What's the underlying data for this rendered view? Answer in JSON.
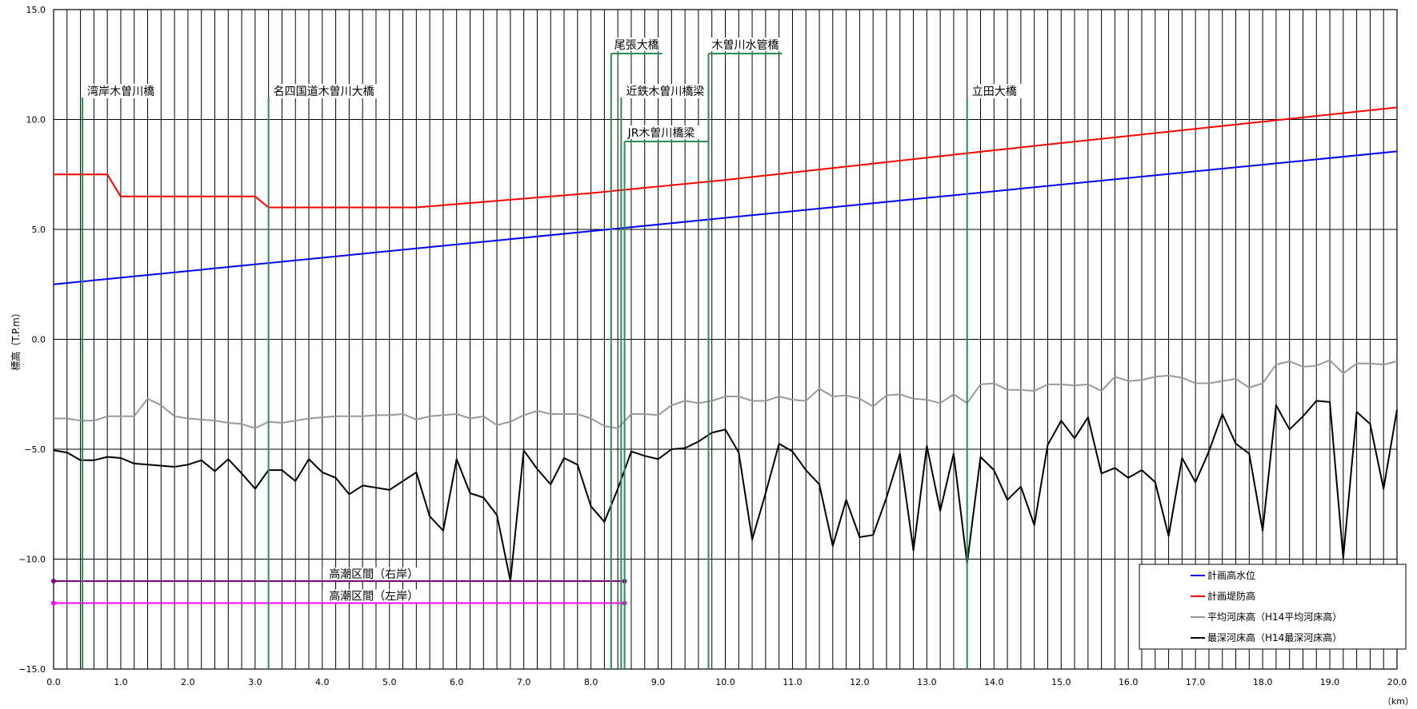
{
  "chart_data": {
    "type": "line",
    "ylabel": "標高（T.P.m）",
    "xunit": "（km）",
    "xlim": [
      0,
      20
    ],
    "ylim": [
      -15,
      15
    ],
    "xticks": [
      0,
      1,
      2,
      3,
      4,
      5,
      6,
      7,
      8,
      9,
      10,
      11,
      12,
      13,
      14,
      15,
      16,
      17,
      18,
      19,
      20
    ],
    "yticks": [
      -15,
      -10,
      -5,
      0,
      5,
      10,
      15
    ],
    "x_tick_labels": [
      "0.0",
      "1.0",
      "2.0",
      "3.0",
      "4.0",
      "5.0",
      "6.0",
      "7.0",
      "8.0",
      "9.0",
      "10.0",
      "11.0",
      "12.0",
      "13.0",
      "14.0",
      "15.0",
      "16.0",
      "17.0",
      "18.0",
      "19.0",
      "20.0"
    ],
    "y_tick_labels": [
      "−15.0",
      "−10.0",
      "−5.0",
      "0.0",
      "5.0",
      "10.0",
      "15.0"
    ],
    "minor_grid_step_x": 0.2,
    "grid": true,
    "series": [
      {
        "name": "計画高水位",
        "color": "#0000ff",
        "x": [
          0,
          20
        ],
        "y": [
          2.5,
          8.55
        ]
      },
      {
        "name": "計画堤防高",
        "color": "#ff0000",
        "x": [
          0,
          0.8,
          1.0,
          3.0,
          3.2,
          5.4,
          8.0,
          10.0,
          14.0,
          20.0
        ],
        "y": [
          7.5,
          7.5,
          6.5,
          6.5,
          6.0,
          6.0,
          6.65,
          7.25,
          8.6,
          10.55
        ]
      },
      {
        "name": "平均河床高（H14平均河床高）",
        "color": "#999999",
        "x": [
          0,
          0.2,
          0.4,
          0.6,
          0.8,
          1.0,
          1.2,
          1.4,
          1.6,
          1.8,
          2.0,
          2.2,
          2.4,
          2.6,
          2.8,
          3.0,
          3.2,
          3.4,
          3.6,
          3.8,
          4.0,
          4.2,
          4.4,
          4.6,
          4.8,
          5.0,
          5.2,
          5.4,
          5.6,
          5.8,
          6.0,
          6.2,
          6.4,
          6.6,
          6.8,
          7.0,
          7.2,
          7.4,
          7.6,
          7.8,
          8.0,
          8.2,
          8.4,
          8.6,
          8.8,
          9.0,
          9.2,
          9.4,
          9.6,
          9.8,
          10.0,
          10.2,
          10.4,
          10.6,
          10.8,
          11.0,
          11.2,
          11.4,
          11.6,
          11.8,
          12.0,
          12.2,
          12.4,
          12.6,
          12.8,
          13.0,
          13.2,
          13.4,
          13.6,
          13.8,
          14.0,
          14.2,
          14.4,
          14.6,
          14.8,
          15.0,
          15.2,
          15.4,
          15.6,
          15.8,
          16.0,
          16.2,
          16.4,
          16.6,
          16.8,
          17.0,
          17.2,
          17.4,
          17.6,
          17.8,
          18.0,
          18.2,
          18.4,
          18.6,
          18.8,
          19.0,
          19.2,
          19.4,
          19.6,
          19.8,
          20.0
        ],
        "y": [
          -3.6,
          -3.6,
          -3.7,
          -3.7,
          -3.5,
          -3.5,
          -3.5,
          -2.7,
          -3.0,
          -3.5,
          -3.6,
          -3.65,
          -3.7,
          -3.8,
          -3.85,
          -4.05,
          -3.75,
          -3.8,
          -3.7,
          -3.6,
          -3.55,
          -3.5,
          -3.5,
          -3.5,
          -3.45,
          -3.45,
          -3.4,
          -3.65,
          -3.5,
          -3.45,
          -3.4,
          -3.6,
          -3.5,
          -3.9,
          -3.75,
          -3.45,
          -3.25,
          -3.4,
          -3.4,
          -3.4,
          -3.6,
          -3.95,
          -4.05,
          -3.4,
          -3.4,
          -3.45,
          -3.0,
          -2.8,
          -2.9,
          -2.8,
          -2.6,
          -2.6,
          -2.8,
          -2.8,
          -2.6,
          -2.75,
          -2.8,
          -2.25,
          -2.6,
          -2.55,
          -2.7,
          -3.05,
          -2.55,
          -2.5,
          -2.7,
          -2.75,
          -2.9,
          -2.5,
          -2.9,
          -2.05,
          -2.0,
          -2.3,
          -2.3,
          -2.35,
          -2.05,
          -2.05,
          -2.1,
          -2.05,
          -2.35,
          -1.7,
          -1.9,
          -1.85,
          -1.7,
          -1.65,
          -1.75,
          -2.0,
          -2.0,
          -1.9,
          -1.8,
          -2.2,
          -2.0,
          -1.15,
          -1.0,
          -1.25,
          -1.2,
          -0.95,
          -1.55,
          -1.1,
          -1.1,
          -1.15,
          -1.0
        ]
      },
      {
        "name": "最深河床高（H14最深河床高）",
        "color": "#000000",
        "x": [
          0,
          0.2,
          0.4,
          0.6,
          0.8,
          1.0,
          1.2,
          1.4,
          1.6,
          1.8,
          2.0,
          2.2,
          2.4,
          2.6,
          2.8,
          3.0,
          3.2,
          3.4,
          3.6,
          3.8,
          4.0,
          4.2,
          4.4,
          4.6,
          4.8,
          5.0,
          5.2,
          5.4,
          5.6,
          5.8,
          6.0,
          6.2,
          6.4,
          6.6,
          6.8,
          7.0,
          7.2,
          7.4,
          7.6,
          7.8,
          8.0,
          8.2,
          8.4,
          8.6,
          8.8,
          9.0,
          9.2,
          9.4,
          9.6,
          9.8,
          10.0,
          10.2,
          10.4,
          10.6,
          10.8,
          11.0,
          11.2,
          11.4,
          11.6,
          11.8,
          12.0,
          12.2,
          12.4,
          12.6,
          12.8,
          13.0,
          13.2,
          13.4,
          13.6,
          13.8,
          14.0,
          14.2,
          14.4,
          14.6,
          14.8,
          15.0,
          15.2,
          15.4,
          15.6,
          15.8,
          16.0,
          16.2,
          16.4,
          16.6,
          16.8,
          17.0,
          17.2,
          17.4,
          17.6,
          17.8,
          18.0,
          18.2,
          18.4,
          18.6,
          18.8,
          19.0,
          19.2,
          19.4,
          19.6,
          19.8,
          20.0
        ],
        "y": [
          -5.05,
          -5.15,
          -5.5,
          -5.5,
          -5.35,
          -5.4,
          -5.65,
          -5.7,
          -5.75,
          -5.8,
          -5.7,
          -5.5,
          -6.0,
          -5.45,
          -6.1,
          -6.8,
          -5.95,
          -5.95,
          -6.45,
          -5.45,
          -6.05,
          -6.3,
          -7.05,
          -6.65,
          -6.75,
          -6.85,
          -6.45,
          -6.05,
          -8.05,
          -8.7,
          -5.45,
          -7.0,
          -7.2,
          -8.0,
          -11.0,
          -5.05,
          -5.9,
          -6.6,
          -5.4,
          -5.7,
          -7.6,
          -8.3,
          -6.8,
          -5.1,
          -5.3,
          -5.45,
          -5.0,
          -4.95,
          -4.65,
          -4.25,
          -4.1,
          -5.15,
          -9.1,
          -7.0,
          -4.75,
          -5.1,
          -5.95,
          -6.6,
          -9.4,
          -7.3,
          -9.0,
          -8.9,
          -7.2,
          -5.2,
          -9.6,
          -4.85,
          -7.8,
          -5.2,
          -10.2,
          -5.35,
          -5.95,
          -7.3,
          -6.7,
          -8.45,
          -4.8,
          -3.7,
          -4.5,
          -3.55,
          -6.1,
          -5.85,
          -6.3,
          -5.95,
          -6.5,
          -8.95,
          -5.4,
          -6.5,
          -5.1,
          -3.4,
          -4.75,
          -5.2,
          -8.7,
          -3.0,
          -4.1,
          -3.5,
          -2.8,
          -2.85,
          -9.95,
          -3.3,
          -3.85,
          -6.8,
          -3.2
        ]
      }
    ],
    "bridges": [
      {
        "name": "湾岸木曽川橋",
        "x": 0.43,
        "top": 11.0
      },
      {
        "name": "名四国道木曽川大橋",
        "x": 3.2,
        "top": 11.0
      },
      {
        "name": "尾張大橋",
        "x": 8.3,
        "top": 13.0
      },
      {
        "name": "近鉄木曽川橋梁",
        "x": 8.45,
        "top": 11.0
      },
      {
        "name": "JR木曽川橋梁",
        "x": 8.5,
        "top": 9.0
      },
      {
        "name": "木曽川水管橋",
        "x": 9.75,
        "top": 13.0
      },
      {
        "name": "立田大橋",
        "x": 13.6,
        "top": 11.0
      }
    ],
    "sections": [
      {
        "name": "高潮区間（右岸）",
        "color": "#800080",
        "x": [
          0,
          8.5
        ],
        "y": -11.0
      },
      {
        "name": "高潮区間（左岸）",
        "color": "#ff00ff",
        "x": [
          0,
          8.5
        ],
        "y": -12.0
      }
    ],
    "legend_position": "bottom-right"
  }
}
